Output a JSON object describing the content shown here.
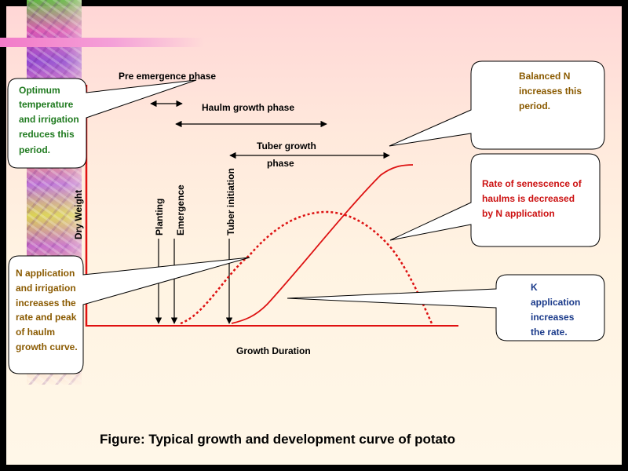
{
  "labels": {
    "y_axis": "Dry Weight",
    "x_axis": "Growth Duration",
    "pre_emergence": "Pre emergence phase",
    "haulm_growth": "Haulm growth phase",
    "tuber_growth_line1": "Tuber growth",
    "tuber_growth_line2": "phase",
    "planting": "Planting",
    "emergence": "Emergence",
    "tuber_initiation": "Tuber initiation"
  },
  "callouts": {
    "temperature": [
      "Optimum",
      "temperature",
      "and irrigation",
      "reduces this",
      "period."
    ],
    "n_irrigation": [
      "N application",
      "and irrigation",
      "increases the",
      "rate and peak",
      "of haulm",
      "growth curve."
    ],
    "balanced_n": [
      "Balanced N",
      "increases this",
      "period."
    ],
    "senescence": [
      "Rate of senescence of",
      "haulms is decreased",
      "by N application"
    ],
    "k_application": [
      "K",
      "application",
      "increases",
      "the rate."
    ]
  },
  "caption": "Figure:  Typical growth and development curve of potato",
  "colors": {
    "axis": "#e01010",
    "curve": "#dd1111",
    "note_green": "#1f7a1f",
    "note_gold": "#8a5a00",
    "note_red": "#cc1111",
    "note_blue": "#1a3a8a"
  }
}
